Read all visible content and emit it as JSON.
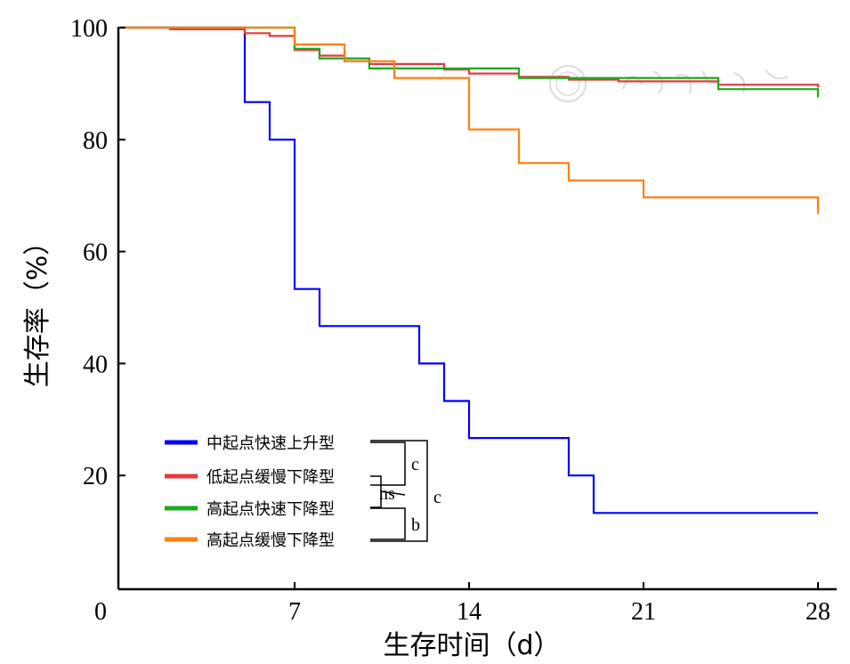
{
  "chart_data": {
    "type": "line",
    "step": true,
    "title": "",
    "xlabel": "生存时间（d）",
    "ylabel": "生存率（%）",
    "xlim": [
      0,
      28
    ],
    "ylim": [
      0,
      100
    ],
    "xticks": [
      0,
      7,
      14,
      21,
      28
    ],
    "yticks": [
      20,
      40,
      60,
      80,
      100
    ],
    "ytick_labels": [
      "20",
      "40",
      "60",
      "80",
      "100"
    ],
    "xtick_labels": [
      "0",
      "7",
      "14",
      "21",
      "28"
    ],
    "grid": false,
    "legend_position": "bottom-left",
    "series": [
      {
        "name": "中起点快速上升型",
        "color": "#0000ff",
        "points": [
          [
            0,
            100
          ],
          [
            5,
            100
          ],
          [
            5,
            86.7
          ],
          [
            6,
            86.7
          ],
          [
            6,
            80
          ],
          [
            7,
            80
          ],
          [
            7,
            53.3
          ],
          [
            8,
            53.3
          ],
          [
            8,
            46.7
          ],
          [
            12,
            46.7
          ],
          [
            12,
            40
          ],
          [
            13,
            40
          ],
          [
            13,
            33.3
          ],
          [
            14,
            33.3
          ],
          [
            14,
            26.7
          ],
          [
            18,
            26.7
          ],
          [
            18,
            20
          ],
          [
            19,
            20
          ],
          [
            19,
            13.3
          ],
          [
            28,
            13.3
          ]
        ]
      },
      {
        "name": "低起点缓慢下降型",
        "color": "#e8383d",
        "points": [
          [
            0,
            100
          ],
          [
            2,
            100
          ],
          [
            2,
            99.7
          ],
          [
            5,
            99.7
          ],
          [
            5,
            99
          ],
          [
            6,
            99
          ],
          [
            6,
            98.5
          ],
          [
            7,
            98.5
          ],
          [
            7,
            96
          ],
          [
            8,
            96
          ],
          [
            8,
            95
          ],
          [
            9,
            95
          ],
          [
            9,
            94
          ],
          [
            10,
            94
          ],
          [
            10,
            93.5
          ],
          [
            13,
            93.5
          ],
          [
            13,
            92.5
          ],
          [
            14,
            92.5
          ],
          [
            14,
            91.8
          ],
          [
            16,
            91.8
          ],
          [
            16,
            91.2
          ],
          [
            18,
            91.2
          ],
          [
            18,
            90.7
          ],
          [
            20,
            90.7
          ],
          [
            20,
            90.4
          ],
          [
            24,
            90.4
          ],
          [
            24,
            89.8
          ],
          [
            28,
            89.8
          ],
          [
            28,
            89.3
          ]
        ]
      },
      {
        "name": "高起点快速下降型",
        "color": "#1aaa1a",
        "points": [
          [
            0,
            100
          ],
          [
            7,
            100
          ],
          [
            7,
            96.2
          ],
          [
            8,
            96.2
          ],
          [
            8,
            94.5
          ],
          [
            10,
            94.5
          ],
          [
            10,
            92.7
          ],
          [
            14,
            92.7
          ],
          [
            14,
            92.7
          ],
          [
            16,
            92.7
          ],
          [
            16,
            91
          ],
          [
            24,
            91
          ],
          [
            24,
            89
          ],
          [
            28,
            89
          ],
          [
            28,
            87.5
          ]
        ]
      },
      {
        "name": "高起点缓慢下降型",
        "color": "#ff7f0e",
        "points": [
          [
            0,
            100
          ],
          [
            7,
            100
          ],
          [
            7,
            97
          ],
          [
            9,
            97
          ],
          [
            9,
            94
          ],
          [
            11,
            94
          ],
          [
            11,
            91
          ],
          [
            14,
            91
          ],
          [
            14,
            81.8
          ],
          [
            16,
            81.8
          ],
          [
            16,
            75.8
          ],
          [
            18,
            75.8
          ],
          [
            18,
            72.7
          ],
          [
            21,
            72.7
          ],
          [
            21,
            69.7
          ],
          [
            28,
            69.7
          ],
          [
            28,
            66.7
          ]
        ]
      }
    ],
    "annotations": [
      {
        "label": "c",
        "between": [
          "中起点快速上升型",
          "低起点缓慢下降型"
        ]
      },
      {
        "label": "ns",
        "between": [
          "低起点缓慢下降型",
          "高起点快速下降型"
        ]
      },
      {
        "label": "b",
        "between": [
          "高起点快速下降型",
          "高起点缓慢下降型"
        ]
      },
      {
        "label": "c",
        "between": [
          "中起点快速上升型",
          "高起点缓慢下降型"
        ]
      }
    ]
  },
  "watermark": "中华医学会"
}
